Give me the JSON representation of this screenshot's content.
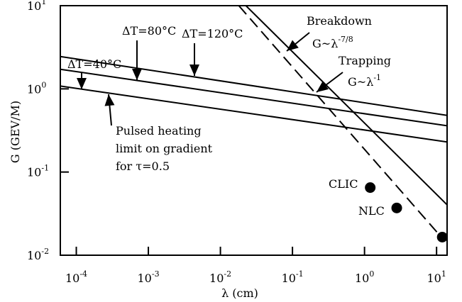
{
  "chart_data": {
    "type": "line",
    "xlabel": "λ (cm)",
    "ylabel": "G (GEV/M)",
    "x_log": true,
    "y_log": true,
    "xlim": [
      6e-05,
      14
    ],
    "ylim": [
      0.01,
      10
    ],
    "x_ticks": [
      {
        "value": 0.0001,
        "base": "10",
        "exp": "-4"
      },
      {
        "value": 0.001,
        "base": "10",
        "exp": "-3"
      },
      {
        "value": 0.01,
        "base": "10",
        "exp": "-2"
      },
      {
        "value": 0.1,
        "base": "10",
        "exp": "-1"
      },
      {
        "value": 1,
        "base": "10",
        "exp": "0"
      },
      {
        "value": 10,
        "base": "10",
        "exp": "1"
      }
    ],
    "y_ticks": [
      {
        "value": 0.01,
        "base": "10",
        "exp": "-2"
      },
      {
        "value": 0.1,
        "base": "10",
        "exp": "-1"
      },
      {
        "value": 1,
        "base": "10",
        "exp": "0"
      },
      {
        "value": 10,
        "base": "10",
        "exp": "1"
      }
    ],
    "series": [
      {
        "name": "ΔT=40°C",
        "style": "solid",
        "x": [
          6e-05,
          14
        ],
        "y": [
          1.08,
          0.23
        ]
      },
      {
        "name": "ΔT=80°C",
        "style": "solid",
        "x": [
          6e-05,
          14
        ],
        "y": [
          1.72,
          0.36
        ]
      },
      {
        "name": "ΔT=120°C",
        "style": "solid",
        "x": [
          6e-05,
          14
        ],
        "y": [
          2.45,
          0.48
        ]
      },
      {
        "name": "Breakdown G~λ-7/8",
        "style": "solid",
        "x": [
          0.0226,
          14
        ],
        "y": [
          10,
          0.0404
        ]
      },
      {
        "name": "Trapping G~λ-1",
        "style": "dashed",
        "x": [
          0.018,
          12
        ],
        "y": [
          10,
          0.016
        ]
      }
    ],
    "points": [
      {
        "name": "CLIC",
        "x": 1.2,
        "y": 0.065
      },
      {
        "name": "NLC",
        "x": 2.8,
        "y": 0.037
      },
      {
        "name": "",
        "x": 12,
        "y": 0.0165
      }
    ],
    "annotations": {
      "dt40": "ΔT=40°C",
      "dt80": "ΔT=80°C",
      "dt120": "ΔT=120°C",
      "breakdown_title": "Breakdown",
      "breakdown_formula": "G~λ",
      "breakdown_exp": "-7/8",
      "trapping_title": "Trapping",
      "trapping_formula": "G~λ",
      "trapping_exp": "-1",
      "pulsed_line1": "Pulsed heating",
      "pulsed_line2": "limit on gradient",
      "pulsed_line3": "for τ=0.5",
      "clic": "CLIC",
      "nlc": "NLC"
    },
    "grid": false,
    "legend": "none",
    "line_color": "#000000",
    "point_color": "#000000"
  }
}
